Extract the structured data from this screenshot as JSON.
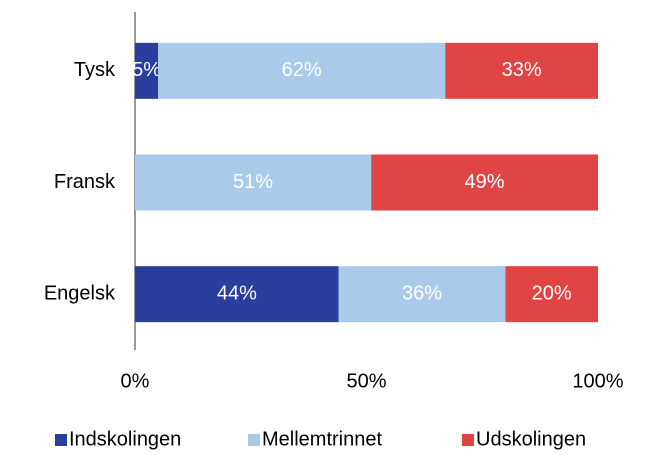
{
  "chart_data": {
    "type": "stacked-barh",
    "categories": [
      "Tysk",
      "Fransk",
      "Engelsk"
    ],
    "series": [
      {
        "name": "Indskolingen",
        "color": "#2a3e9e",
        "values": [
          5,
          0,
          44
        ],
        "value_labels": [
          "5%",
          null,
          "44%"
        ]
      },
      {
        "name": "Mellemtrinnet",
        "color": "#a9cbe9",
        "values": [
          62,
          51,
          36
        ],
        "value_labels": [
          "62%",
          "51%",
          "36%"
        ]
      },
      {
        "name": "Udskolingen",
        "color": "#e04545",
        "values": [
          33,
          49,
          20
        ],
        "value_labels": [
          "33%",
          "49%",
          "20%"
        ]
      }
    ],
    "xlim": [
      0,
      100
    ],
    "xticks": [
      {
        "value": 0,
        "label": "0%"
      },
      {
        "value": 50,
        "label": "50%"
      },
      {
        "value": 100,
        "label": "100%"
      }
    ],
    "legend": "bottom"
  }
}
